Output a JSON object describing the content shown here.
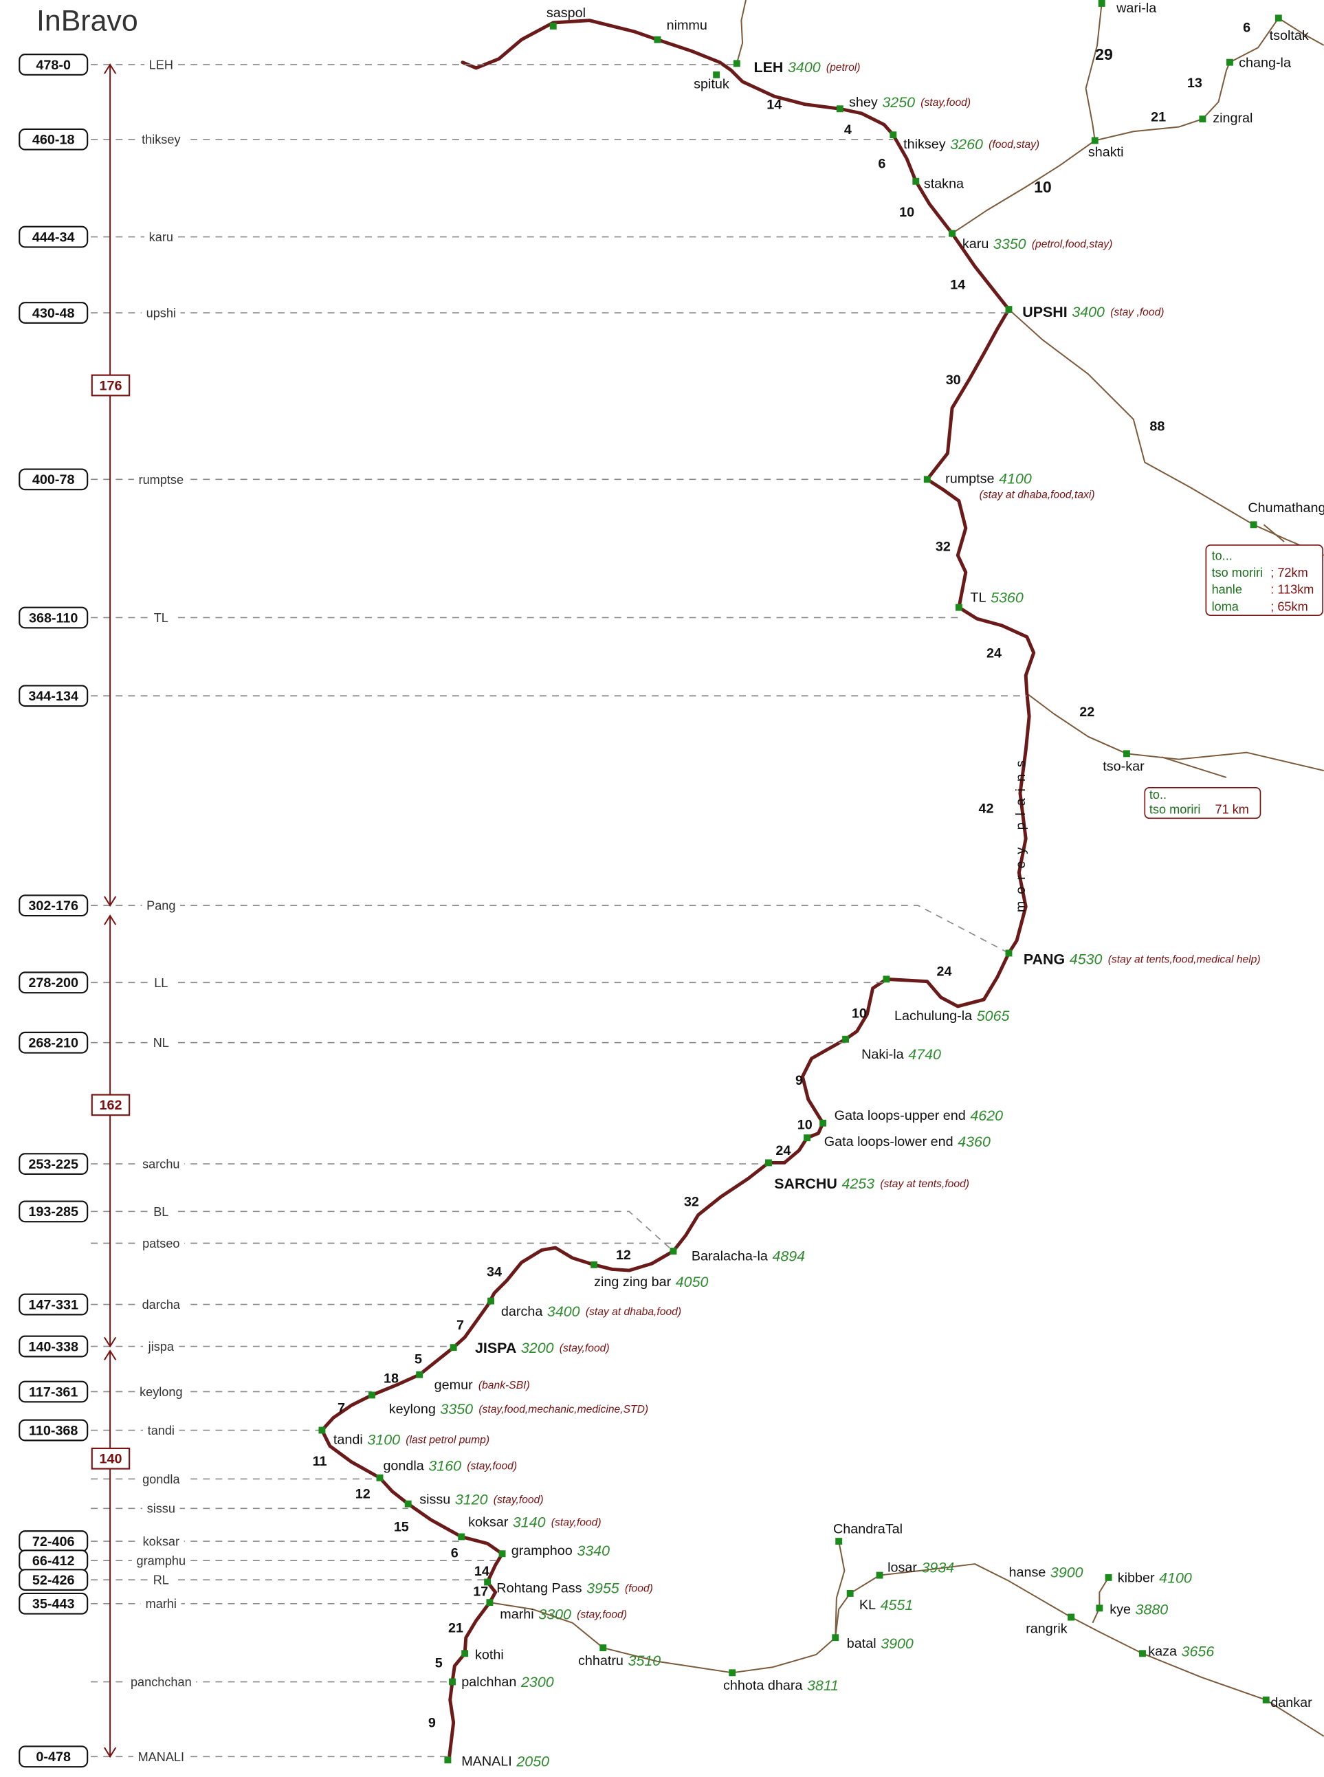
{
  "title": "InBravo",
  "markers": [
    {
      "km": "478-0",
      "place": "LEH"
    },
    {
      "km": "460-18",
      "place": "thiksey"
    },
    {
      "km": "444-34",
      "place": "karu"
    },
    {
      "km": "430-48",
      "place": "upshi"
    },
    {
      "km": "400-78",
      "place": "rumptse"
    },
    {
      "km": "368-110",
      "place": "TL"
    },
    {
      "km": "344-134"
    },
    {
      "km": "302-176",
      "place": "Pang"
    },
    {
      "km": "278-200",
      "place": "LL"
    },
    {
      "km": "268-210",
      "place": "NL"
    },
    {
      "km": "253-225",
      "place": "sarchu"
    },
    {
      "km": "193-285",
      "place": "BL"
    },
    {
      "place": "patseo"
    },
    {
      "km": "147-331",
      "place": "darcha"
    },
    {
      "km": "140-338",
      "place": "jispa"
    },
    {
      "km": "117-361",
      "place": "keylong"
    },
    {
      "km": "110-368",
      "place": "tandi"
    },
    {
      "place": "gondla"
    },
    {
      "place": "sissu"
    },
    {
      "km": "72-406",
      "place": "koksar"
    },
    {
      "km": "66-412",
      "place": "gramphu"
    },
    {
      "km": "52-426",
      "place": "RL"
    },
    {
      "km": "35-443",
      "place": "marhi"
    },
    {
      "place": "panchchan"
    },
    {
      "km": "0-478",
      "place": "MANALI"
    }
  ],
  "spans": [
    176,
    162,
    140
  ],
  "places": [
    {
      "name": "LEH",
      "elevation": 3400,
      "note": "(petrol)"
    },
    {
      "name": "spituk"
    },
    {
      "name": "nimmu"
    },
    {
      "name": "saspol"
    },
    {
      "name": "shey",
      "elevation": 3250,
      "note": "(stay,food)"
    },
    {
      "name": "thiksey",
      "elevation": 3260,
      "note": "(food,stay)"
    },
    {
      "name": "stakna"
    },
    {
      "name": "karu",
      "elevation": 3350,
      "note": "(petrol,food,stay)"
    },
    {
      "name": "UPSHI",
      "elevation": 3400,
      "note": "(stay ,food)"
    },
    {
      "name": "rumptse",
      "elevation": 4100,
      "note": "(stay at dhaba,food,taxi)"
    },
    {
      "name": "TL",
      "elevation": 5360
    },
    {
      "name": "PANG",
      "elevation": 4530,
      "note": "(stay at tents,food,medical help)"
    },
    {
      "name": "Lachulung-la",
      "elevation": 5065
    },
    {
      "name": "Naki-la",
      "elevation": 4740
    },
    {
      "name": "Gata loops-upper end",
      "elevation": 4620
    },
    {
      "name": "Gata loops-lower end",
      "elevation": 4360
    },
    {
      "name": "SARCHU",
      "elevation": 4253,
      "note": "(stay at tents,food)"
    },
    {
      "name": "Baralacha-la",
      "elevation": 4894
    },
    {
      "name": "zing zing bar",
      "elevation": 4050
    },
    {
      "name": "darcha",
      "elevation": 3400,
      "note": "(stay at dhaba,food)"
    },
    {
      "name": "JISPA",
      "elevation": 3200,
      "note": "(stay,food)"
    },
    {
      "name": "gemur",
      "note": "(bank-SBI)"
    },
    {
      "name": "keylong",
      "elevation": 3350,
      "note": "(stay,food,mechanic,medicine,STD)"
    },
    {
      "name": "tandi",
      "elevation": 3100,
      "note": "(last petrol pump)"
    },
    {
      "name": "gondla",
      "elevation": 3160,
      "note": "(stay,food)"
    },
    {
      "name": "sissu",
      "elevation": 3120,
      "note": "(stay,food)"
    },
    {
      "name": "koksar",
      "elevation": 3140,
      "note": "(stay,food)"
    },
    {
      "name": "gramphoo",
      "elevation": 3340
    },
    {
      "name": "Rohtang Pass",
      "elevation": 3955,
      "note": "(food)"
    },
    {
      "name": "marhi",
      "elevation": 3300,
      "note": "(stay,food)"
    },
    {
      "name": "kothi"
    },
    {
      "name": "palchhan",
      "elevation": 2300
    },
    {
      "name": "MANALI",
      "elevation": 2050
    },
    {
      "name": "wari-la"
    },
    {
      "name": "tsoltak"
    },
    {
      "name": "chang-la"
    },
    {
      "name": "zingral"
    },
    {
      "name": "shakti"
    },
    {
      "name": "Chumathang"
    },
    {
      "name": "tso-kar"
    },
    {
      "name": "ChandraTal"
    },
    {
      "name": "losar",
      "elevation": 3934
    },
    {
      "name": "KL",
      "elevation": 4551
    },
    {
      "name": "batal",
      "elevation": 3900
    },
    {
      "name": "chhatru",
      "elevation": 3510
    },
    {
      "name": "chhota dhara",
      "elevation": 3811
    },
    {
      "name": "hanse",
      "elevation": 3900
    },
    {
      "name": "rangrik"
    },
    {
      "name": "kibber",
      "elevation": 4100
    },
    {
      "name": "kye",
      "elevation": 3880
    },
    {
      "name": "kaza",
      "elevation": 3656
    },
    {
      "name": "dankar"
    }
  ],
  "distances": [
    14,
    4,
    6,
    10,
    14,
    30,
    32,
    24,
    42,
    22,
    88,
    24,
    10,
    9,
    10,
    24,
    32,
    12,
    34,
    7,
    5,
    18,
    7,
    11,
    12,
    15,
    6,
    14,
    17,
    21,
    5,
    9,
    29,
    10,
    21,
    13,
    6
  ],
  "region_label": "morey plains",
  "info_boxes": [
    {
      "rows": [
        [
          "to..."
        ],
        [
          "tso moriri",
          "; 72km"
        ],
        [
          "hanle",
          ": 113km"
        ],
        [
          "loma",
          "; 65km"
        ]
      ]
    },
    {
      "rows": [
        [
          "to.."
        ],
        [
          "tso moriri",
          "71 km"
        ]
      ]
    }
  ]
}
